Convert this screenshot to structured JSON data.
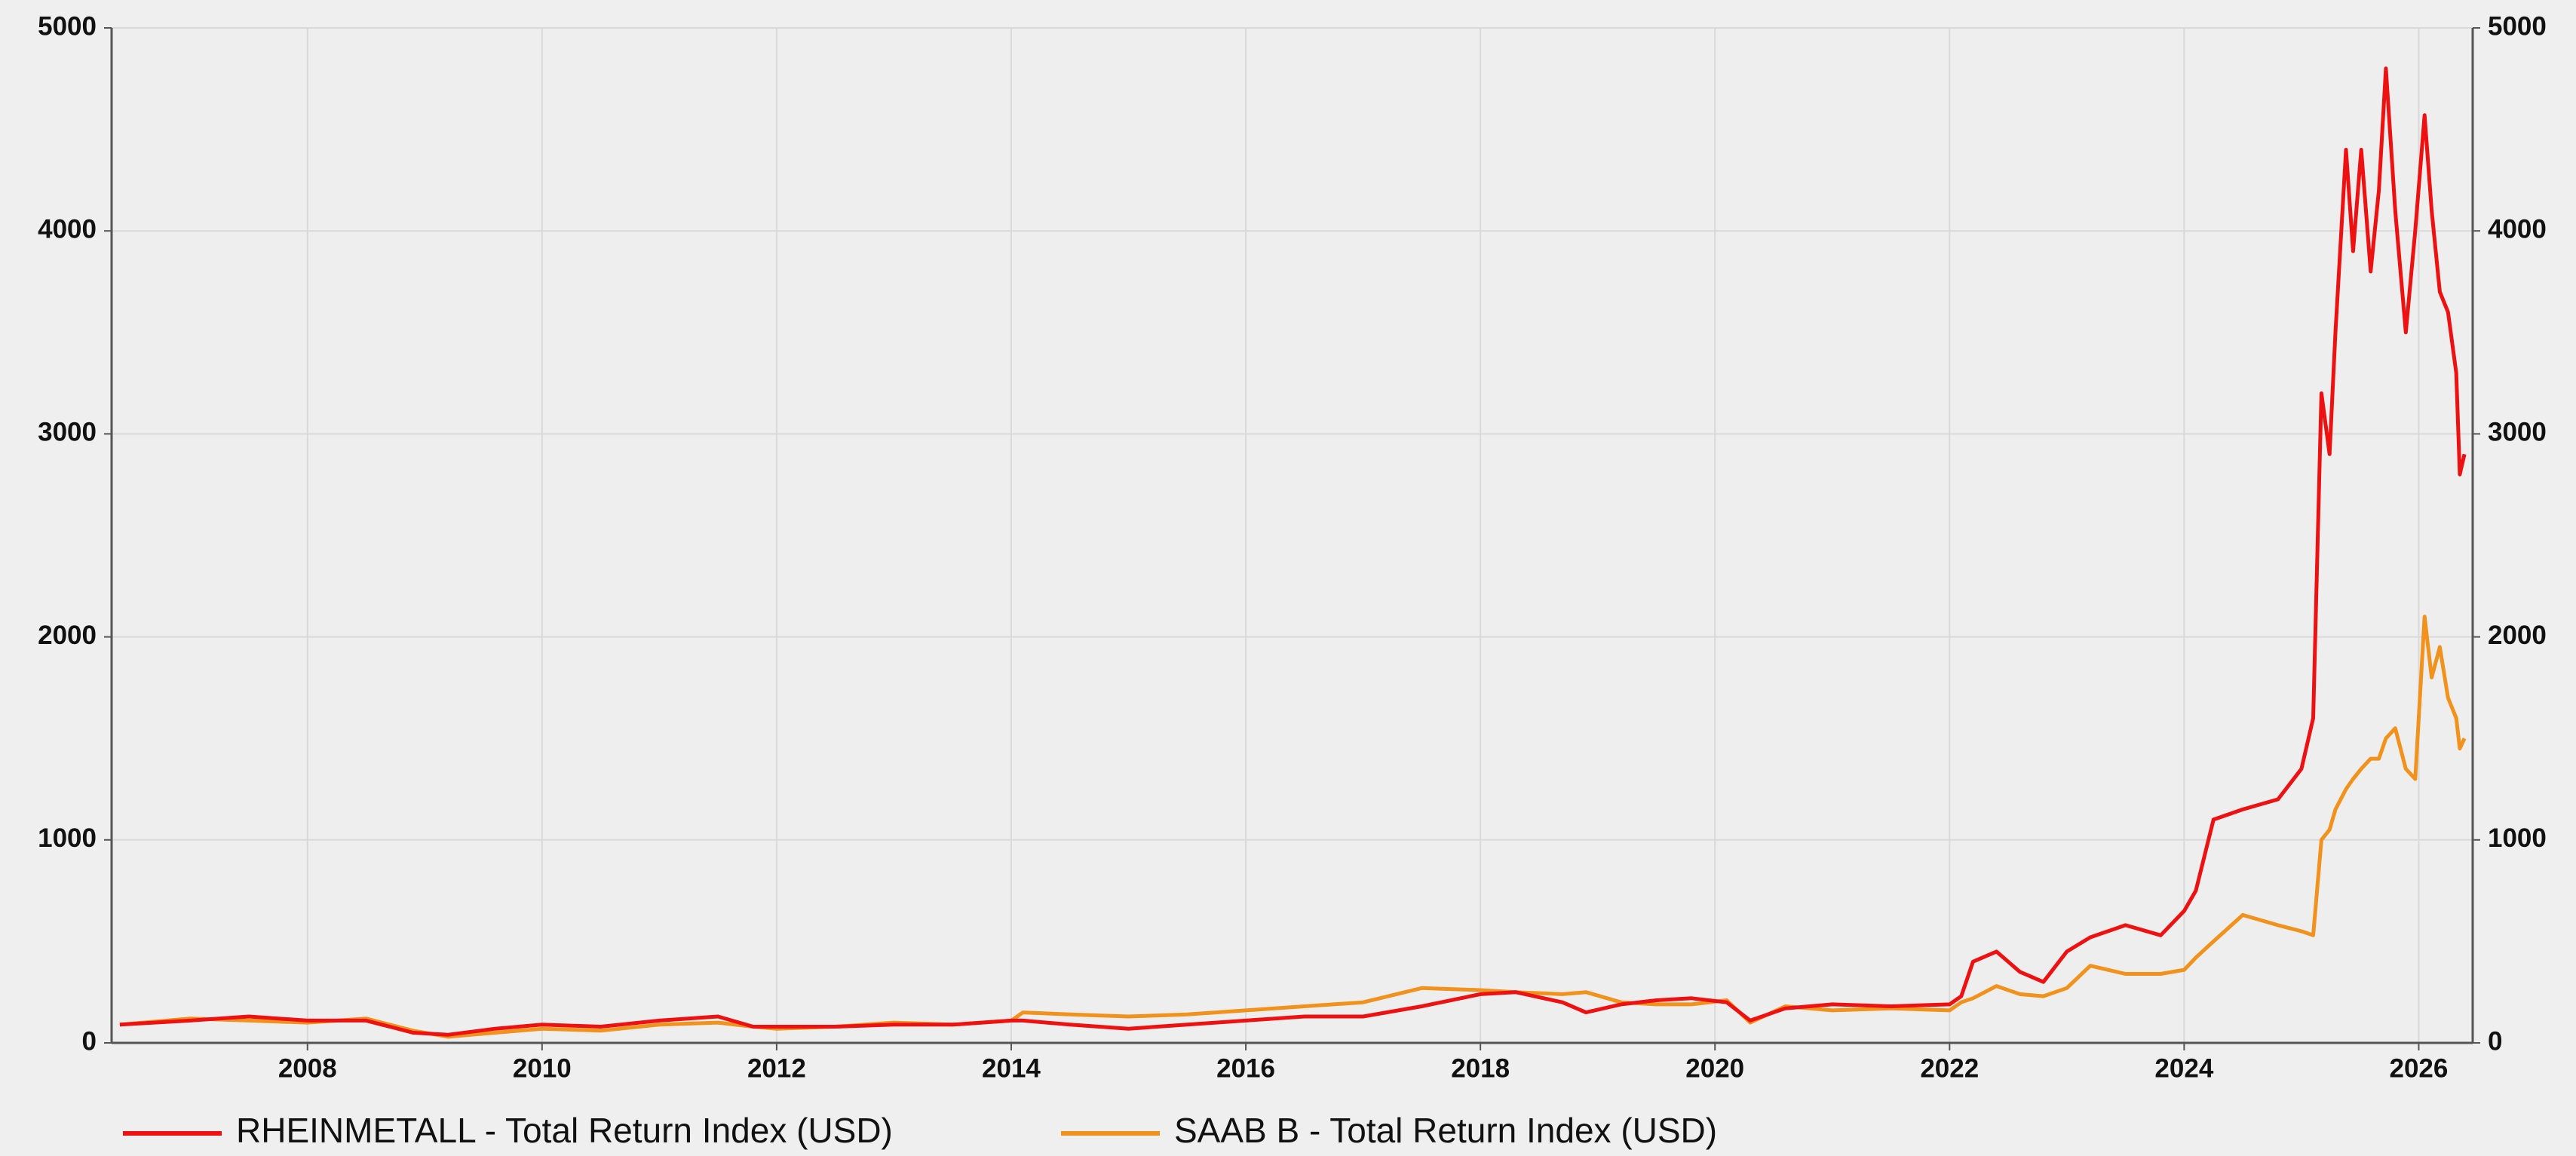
{
  "chart_data": {
    "type": "line",
    "x": [
      2006.4,
      2007,
      2007.5,
      2008,
      2008.5,
      2008.9,
      2009.2,
      2009.6,
      2010,
      2010.5,
      2011,
      2011.5,
      2011.8,
      2012,
      2012.5,
      2013,
      2013.5,
      2014,
      2014.1,
      2014.5,
      2015,
      2015.5,
      2016,
      2016.5,
      2017,
      2017.5,
      2018,
      2018.3,
      2018.7,
      2018.9,
      2019.2,
      2019.5,
      2019.8,
      2020.1,
      2020.3,
      2020.6,
      2021,
      2021.5,
      2022,
      2022.1,
      2022.2,
      2022.4,
      2022.6,
      2022.8,
      2023,
      2023.2,
      2023.5,
      2023.8,
      2024,
      2024.1,
      2024.25,
      2024.5,
      2024.8,
      2025,
      2025.1,
      2025.17,
      2025.24,
      2025.29,
      2025.38,
      2025.44,
      2025.51,
      2025.59,
      2025.66,
      2025.72,
      2025.8,
      2025.89,
      2025.97,
      2026.05,
      2026.11,
      2026.18,
      2026.25,
      2026.32,
      2026.35,
      2026.39
    ],
    "series": [
      {
        "name": "RHEINMETALL - Total Return Index (USD)",
        "color": "#ee1111",
        "values": [
          90,
          110,
          130,
          110,
          110,
          50,
          40,
          70,
          90,
          80,
          110,
          130,
          80,
          80,
          80,
          90,
          90,
          110,
          110,
          90,
          70,
          90,
          110,
          130,
          130,
          180,
          240,
          250,
          200,
          150,
          190,
          210,
          220,
          200,
          110,
          170,
          190,
          180,
          190,
          230,
          400,
          450,
          350,
          300,
          450,
          520,
          580,
          530,
          650,
          750,
          1100,
          1150,
          1200,
          1350,
          1600,
          3200,
          2900,
          3500,
          4400,
          3900,
          4400,
          3800,
          4200,
          4800,
          4100,
          3500,
          4000,
          4570,
          4100,
          3700,
          3600,
          3300,
          2800,
          2900
        ]
      },
      {
        "name": "SAAB B - Total Return Index (USD)",
        "color": "#f0921c",
        "values": [
          90,
          120,
          110,
          100,
          120,
          60,
          30,
          50,
          70,
          60,
          90,
          100,
          80,
          70,
          80,
          100,
          90,
          110,
          150,
          140,
          130,
          140,
          160,
          180,
          200,
          270,
          260,
          250,
          240,
          250,
          200,
          190,
          190,
          210,
          100,
          180,
          160,
          170,
          160,
          200,
          220,
          280,
          240,
          230,
          270,
          380,
          340,
          340,
          360,
          420,
          500,
          630,
          580,
          550,
          530,
          1000,
          1050,
          1150,
          1250,
          1300,
          1350,
          1400,
          1400,
          1500,
          1550,
          1350,
          1300,
          2100,
          1800,
          1950,
          1700,
          1600,
          1450,
          1500
        ]
      }
    ],
    "xlim": [
      2006.33,
      2026.46
    ],
    "xticks": [
      2008,
      2010,
      2012,
      2014,
      2016,
      2018,
      2020,
      2022,
      2024,
      2026
    ],
    "ylim": [
      0,
      5000
    ],
    "yticks": [
      0,
      1000,
      2000,
      3000,
      4000,
      5000
    ],
    "y2lim": [
      0,
      5000
    ],
    "y2ticks": [
      0,
      1000,
      2000,
      3000,
      4000,
      5000
    ],
    "grid": true,
    "legend": "bottom"
  }
}
